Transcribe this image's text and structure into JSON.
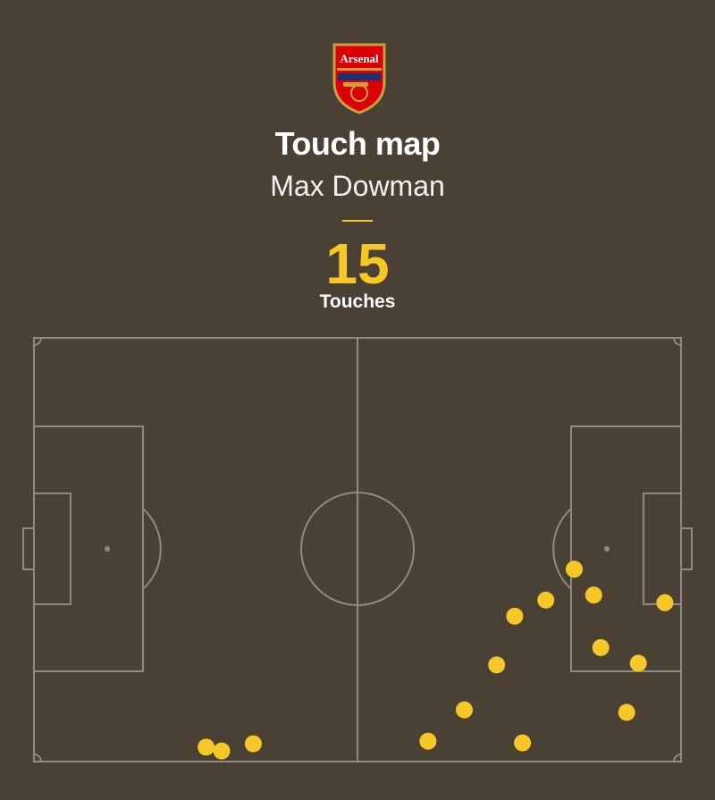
{
  "header": {
    "crest_text": "Arsenal",
    "title": "Touch map",
    "player": "Max Dowman",
    "stat_value": "15",
    "stat_label": "Touches"
  },
  "colors": {
    "background": "#4a4034",
    "pitch_lines": "#8f8a84",
    "touch_marker": "#f5c827",
    "accent": "#f5c827",
    "crest_red": "#db0007",
    "crest_gold": "#c9a13b"
  },
  "chart_data": {
    "type": "scatter",
    "title": "Touch map",
    "subtitle": "Max Dowman",
    "xlim": [
      0,
      100
    ],
    "ylim": [
      0,
      100
    ],
    "grid": false,
    "points": [
      {
        "x": 26.6,
        "y": 96.6
      },
      {
        "x": 29.0,
        "y": 97.5
      },
      {
        "x": 33.9,
        "y": 95.8
      },
      {
        "x": 60.9,
        "y": 95.2
      },
      {
        "x": 66.5,
        "y": 87.8
      },
      {
        "x": 71.5,
        "y": 77.2
      },
      {
        "x": 74.3,
        "y": 65.7
      },
      {
        "x": 75.5,
        "y": 95.6
      },
      {
        "x": 79.1,
        "y": 61.9
      },
      {
        "x": 83.5,
        "y": 54.6
      },
      {
        "x": 86.5,
        "y": 60.7
      },
      {
        "x": 87.6,
        "y": 73.1
      },
      {
        "x": 91.6,
        "y": 88.4
      },
      {
        "x": 93.4,
        "y": 76.8
      },
      {
        "x": 97.5,
        "y": 62.5
      }
    ]
  }
}
